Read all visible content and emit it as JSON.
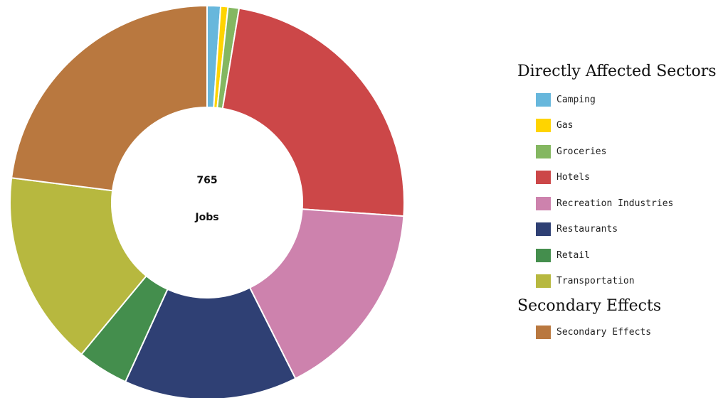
{
  "chart_data": {
    "type": "pie",
    "total": "765",
    "unit_label": "Jobs",
    "slices": [
      {
        "label": "Camping",
        "value": 1.1,
        "color": "#67b7dc"
      },
      {
        "label": "Gas",
        "value": 0.6,
        "color": "#ffd400"
      },
      {
        "label": "Groceries",
        "value": 0.9,
        "color": "#84b761"
      },
      {
        "label": "Hotels",
        "value": 23.5,
        "color": "#cc4748"
      },
      {
        "label": "Recreation Industries",
        "value": 16.5,
        "color": "#cd82ad"
      },
      {
        "label": "Restaurants",
        "value": 14.2,
        "color": "#2f4074"
      },
      {
        "label": "Retail",
        "value": 4.2,
        "color": "#448e4d"
      },
      {
        "label": "Transportation",
        "value": 16.0,
        "color": "#b7b83f"
      },
      {
        "label": "Secondary Effects",
        "value": 23.0,
        "color": "#b9783f"
      }
    ]
  },
  "legend": {
    "groups": [
      {
        "title": "Directly Affected Sectors",
        "items": [
          {
            "label": "Camping",
            "color": "#67b7dc"
          },
          {
            "label": "Gas",
            "color": "#ffd400"
          },
          {
            "label": "Groceries",
            "color": "#84b761"
          },
          {
            "label": "Hotels",
            "color": "#cc4748"
          },
          {
            "label": "Recreation Industries",
            "color": "#cd82ad"
          },
          {
            "label": "Restaurants",
            "color": "#2f4074"
          },
          {
            "label": "Retail",
            "color": "#448e4d"
          },
          {
            "label": "Transportation",
            "color": "#b7b83f"
          }
        ]
      },
      {
        "title": "Secondary Effects",
        "items": [
          {
            "label": "Secondary Effects",
            "color": "#b9783f"
          }
        ]
      }
    ]
  }
}
